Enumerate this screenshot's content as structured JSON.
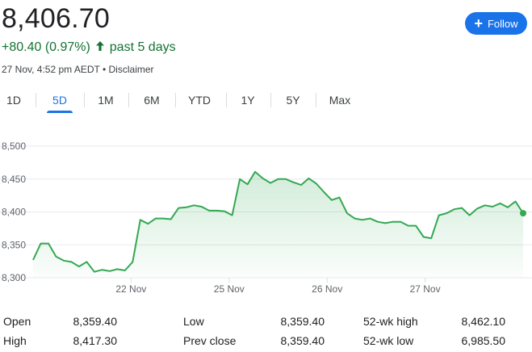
{
  "header": {
    "price": "8,406.70",
    "change": "+80.40 (0.97%)",
    "period": "past 5 days",
    "timestamp": "27 Nov, 4:52 pm AEDT",
    "separator": "•",
    "disclaimer": "Disclaimer",
    "follow_label": "Follow"
  },
  "tabs": [
    {
      "label": "1D",
      "active": false
    },
    {
      "label": "5D",
      "active": true
    },
    {
      "label": "1M",
      "active": false
    },
    {
      "label": "6M",
      "active": false
    },
    {
      "label": "YTD",
      "active": false
    },
    {
      "label": "1Y",
      "active": false
    },
    {
      "label": "5Y",
      "active": false
    },
    {
      "label": "Max",
      "active": false
    }
  ],
  "colors": {
    "accent": "#1a73e8",
    "positive": "#137333",
    "line": "#34a853"
  },
  "chart_data": {
    "type": "area",
    "ylim": [
      8300,
      8500
    ],
    "y_ticks": [
      "8,500",
      "8,450",
      "8,400",
      "8,350",
      "8,300"
    ],
    "y_tick_values": [
      8500,
      8450,
      8400,
      8350,
      8300
    ],
    "x_labels": [
      "22 Nov",
      "25 Nov",
      "26 Nov",
      "27 Nov"
    ],
    "x_label_positions": [
      10,
      20,
      30,
      40
    ],
    "x_range": [
      0,
      50
    ],
    "series": [
      {
        "values": [
          8327,
          8352,
          8352,
          8332,
          8326,
          8324,
          8317,
          8324,
          8309,
          8312,
          8310,
          8313,
          8311,
          8324,
          8388,
          8382,
          8390,
          8390,
          8389,
          8406,
          8407,
          8410,
          8408,
          8402,
          8402,
          8401,
          8395,
          8450,
          8442,
          8461,
          8451,
          8444,
          8450,
          8450,
          8445,
          8441,
          8451,
          8443,
          8430,
          8418,
          8422,
          8398,
          8390,
          8388,
          8390,
          8385,
          8383,
          8385,
          8385,
          8379,
          8379,
          8362,
          8360,
          8395,
          8398,
          8404,
          8406,
          8395,
          8405,
          8410,
          8408,
          8413,
          8407,
          8416,
          8398
        ]
      }
    ]
  },
  "stats": {
    "open_label": "Open",
    "open": "8,359.40",
    "high_label": "High",
    "high": "8,417.30",
    "low_label": "Low",
    "low": "8,359.40",
    "prev_close_label": "Prev close",
    "prev_close": "8,359.40",
    "wk52_high_label": "52-wk high",
    "wk52_high": "8,462.10",
    "wk52_low_label": "52-wk low",
    "wk52_low": "6,985.50"
  }
}
